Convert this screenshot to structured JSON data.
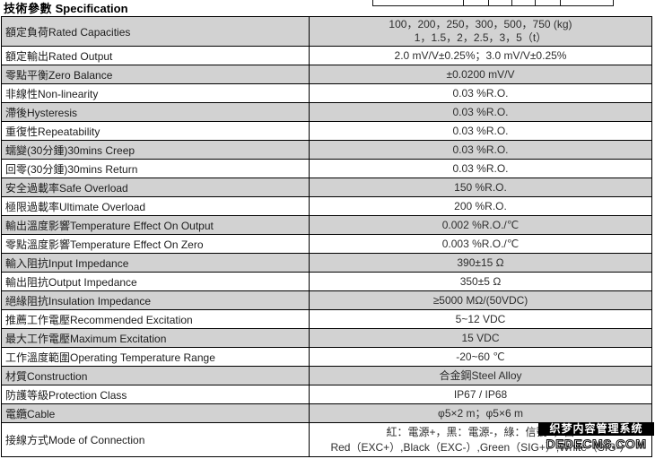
{
  "header": {
    "title_zh": "技術參數",
    "title_en": "Specification"
  },
  "colors": {
    "row_shaded": "#d2d2d2",
    "row_plain": "#ffffff",
    "border": "#000000",
    "watermark_bg": "#000000",
    "watermark_text": "#ffffff"
  },
  "table": {
    "rows": [
      {
        "label": "額定負荷Rated Capacities",
        "values": [
          "100，200，250，300，500，750 (kg)",
          "1，1.5，2，2.5，3，5（t）"
        ]
      },
      {
        "label": "額定輸出Rated Output",
        "values": [
          "2.0 mV/V±0.25%；3.0 mV/V±0.25%"
        ]
      },
      {
        "label": "零點平衡Zero Balance",
        "values": [
          "±0.0200 mV/V"
        ]
      },
      {
        "label": "非線性Non-linearity",
        "values": [
          "0.03 %R.O."
        ]
      },
      {
        "label": "滯後Hysteresis",
        "values": [
          "0.03 %R.O."
        ]
      },
      {
        "label": "重復性Repeatability",
        "values": [
          "0.03 %R.O."
        ]
      },
      {
        "label": "蠕變(30分鍾)30mins Creep",
        "values": [
          "0.03 %R.O."
        ]
      },
      {
        "label": "回零(30分鍾)30mins Return",
        "values": [
          "0.03 %R.O."
        ]
      },
      {
        "label": "安全過載率Safe Overload",
        "values": [
          "150 %R.O."
        ]
      },
      {
        "label": "極限過載率Ultimate Overload",
        "values": [
          "200 %R.O."
        ]
      },
      {
        "label": "輸出溫度影響Temperature Effect On Output",
        "values": [
          "0.002 %R.O./℃"
        ]
      },
      {
        "label": "零點溫度影響Temperature Effect On Zero",
        "values": [
          "0.003 %R.O./℃"
        ]
      },
      {
        "label": "輸入阻抗Input Impedance",
        "values": [
          "390±15 Ω"
        ]
      },
      {
        "label": "輸出阻抗Output Impedance",
        "values": [
          "350±5 Ω"
        ]
      },
      {
        "label": "絕緣阻抗Insulation Impedance",
        "values": [
          "≥5000 MΩ/(50VDC)"
        ]
      },
      {
        "label": "推薦工作電壓Recommended Excitation",
        "values": [
          "5~12 VDC"
        ]
      },
      {
        "label": "最大工作電壓Maximum Excitation",
        "values": [
          "15 VDC"
        ]
      },
      {
        "label": "工作溫度範圍Operating Temperature Range",
        "values": [
          "-20~60 ℃"
        ]
      },
      {
        "label": "材質Construction",
        "values": [
          "合金鋼Steel Alloy"
        ]
      },
      {
        "label": "防護等級Protection Class",
        "values": [
          "IP67 / IP68"
        ]
      },
      {
        "label": "電纜Cable",
        "values": [
          "φ5×2 m；φ5×6 m"
        ]
      },
      {
        "label": "接線方式Mode of Connection",
        "values": [
          "紅：電源+，黑：電源-，綠：信號+，白",
          "Red（EXC+）,Black（EXC-）,Green（SIG+）,White（SIG-）"
        ]
      }
    ]
  },
  "watermark": {
    "line1": "织梦内容管理系统",
    "line2": "DEDECMS.COM"
  }
}
